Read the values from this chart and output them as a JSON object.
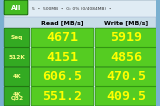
{
  "rows": [
    {
      "label": "Seq",
      "read": "4671",
      "write": "5919"
    },
    {
      "label": "512K",
      "read": "4151",
      "write": "4856"
    },
    {
      "label": "4K",
      "read": "606.5",
      "write": "470.5"
    },
    {
      "label": "4K\nQ32",
      "read": "551.2",
      "write": "409.5"
    }
  ],
  "top_text": "5  •  500MB  •  G: 0% (0/4084MB)  •",
  "col_headers": [
    "Read [MB/s]",
    "Write [MB/s]"
  ],
  "bg_outer": "#7ab0d0",
  "bg_inner": "#d8eef8",
  "top_bar_bg": "#e0ecf4",
  "label_cell_bg": "#33aa22",
  "label_cell_edge": "#116600",
  "data_cell_bg": "#55cc22",
  "data_cell_edge": "#228800",
  "all_btn_bg": "#44bb22",
  "all_btn_edge": "#116600",
  "num_color": "#ffff00",
  "label_text_color": "#ffff88",
  "header_text_color": "#000000",
  "top_text_color": "#333333",
  "all_text_color": "#ffffff",
  "header_bg": "#c8dce8"
}
